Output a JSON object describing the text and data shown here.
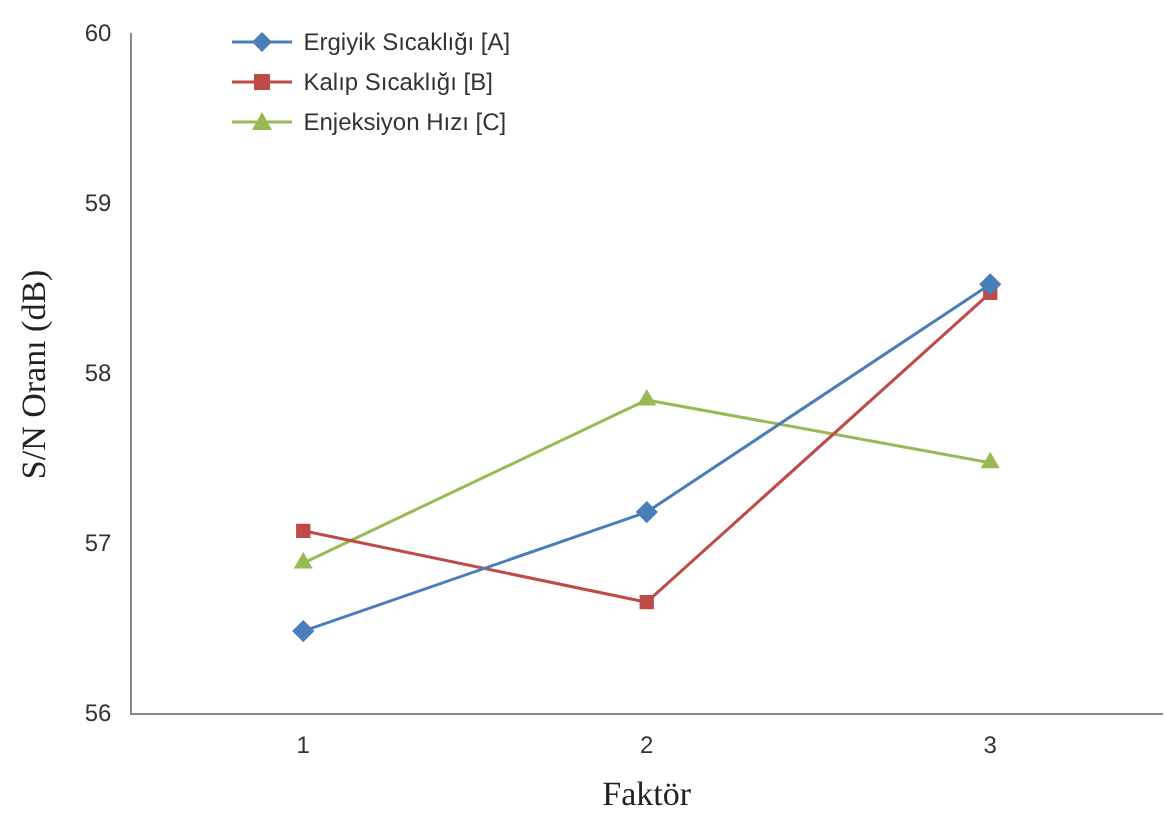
{
  "chart_data": {
    "type": "line",
    "xlabel": "Faktör",
    "ylabel": "S/N Oranı (dB)",
    "categories": [
      "1",
      "2",
      "3"
    ],
    "series": [
      {
        "name": "Ergiyik Sıcaklığı [A]",
        "color": "#4a7ebb",
        "marker": "diamond",
        "values": [
          56.49,
          57.19,
          58.53
        ]
      },
      {
        "name": "Kalıp Sıcaklığı [B]",
        "color": "#be4b48",
        "marker": "square",
        "values": [
          57.08,
          56.66,
          58.48
        ]
      },
      {
        "name": "Enjeksiyon Hızı [C]",
        "color": "#98b954",
        "marker": "triangle",
        "values": [
          56.89,
          57.85,
          57.48
        ]
      }
    ],
    "ylim": [
      56,
      60
    ],
    "yticks": [
      56,
      57,
      58,
      59,
      60
    ],
    "grid": false,
    "legend": "top left"
  }
}
